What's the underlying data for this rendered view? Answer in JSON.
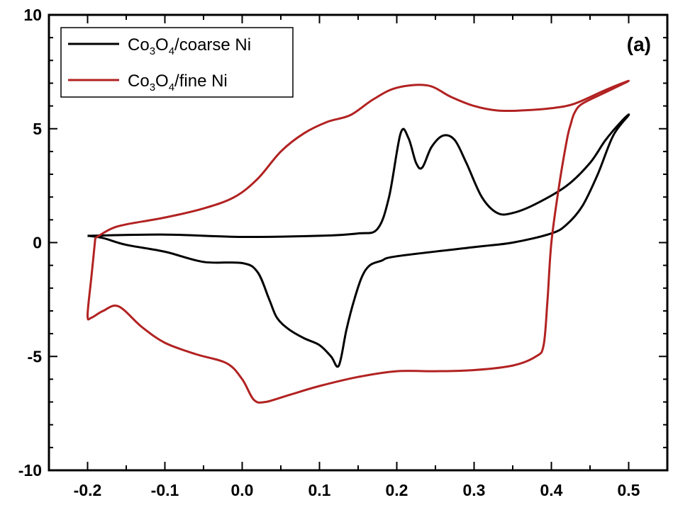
{
  "chart_data": {
    "type": "line",
    "title": "",
    "xlabel": "",
    "ylabel": "",
    "xlim": [
      -0.25,
      0.55
    ],
    "ylim": [
      -10,
      10
    ],
    "x_ticks": [
      "-0.2",
      "-0.1",
      "0.0",
      "0.1",
      "0.2",
      "0.3",
      "0.4",
      "0.5"
    ],
    "y_ticks": [
      "10",
      "5",
      "0",
      "-5",
      "-10"
    ],
    "annotation": "(a)",
    "legend_position": "top-left",
    "series": [
      {
        "name": "Co3O4/coarse Ni",
        "legend_main_1": "Co",
        "legend_sub_1": "3",
        "legend_main_2": "O",
        "legend_sub_2": "4",
        "legend_rest": "/coarse Ni",
        "color": "#000000",
        "points": [
          [
            -0.2,
            0.3
          ],
          [
            -0.1,
            0.35
          ],
          [
            0.0,
            0.25
          ],
          [
            0.1,
            0.3
          ],
          [
            0.15,
            0.4
          ],
          [
            0.175,
            0.6
          ],
          [
            0.19,
            2.0
          ],
          [
            0.205,
            4.8
          ],
          [
            0.215,
            4.6
          ],
          [
            0.225,
            3.5
          ],
          [
            0.233,
            3.3
          ],
          [
            0.245,
            4.2
          ],
          [
            0.26,
            4.7
          ],
          [
            0.275,
            4.5
          ],
          [
            0.29,
            3.5
          ],
          [
            0.31,
            2.0
          ],
          [
            0.33,
            1.3
          ],
          [
            0.35,
            1.3
          ],
          [
            0.38,
            1.7
          ],
          [
            0.42,
            2.5
          ],
          [
            0.45,
            3.5
          ],
          [
            0.47,
            4.5
          ],
          [
            0.49,
            5.3
          ],
          [
            0.5,
            5.6
          ],
          [
            0.48,
            4.7
          ],
          [
            0.46,
            3.0
          ],
          [
            0.44,
            1.6
          ],
          [
            0.42,
            0.8
          ],
          [
            0.4,
            0.4
          ],
          [
            0.35,
            0.0
          ],
          [
            0.3,
            -0.2
          ],
          [
            0.2,
            -0.6
          ],
          [
            0.18,
            -0.8
          ],
          [
            0.165,
            -1.0
          ],
          [
            0.155,
            -1.5
          ],
          [
            0.145,
            -2.5
          ],
          [
            0.135,
            -3.8
          ],
          [
            0.125,
            -5.4
          ],
          [
            0.115,
            -5.0
          ],
          [
            0.1,
            -4.5
          ],
          [
            0.08,
            -4.2
          ],
          [
            0.06,
            -3.8
          ],
          [
            0.045,
            -3.3
          ],
          [
            0.035,
            -2.5
          ],
          [
            0.02,
            -1.3
          ],
          [
            0.0,
            -0.9
          ],
          [
            -0.05,
            -0.85
          ],
          [
            -0.1,
            -0.4
          ],
          [
            -0.15,
            -0.1
          ],
          [
            -0.18,
            0.2
          ],
          [
            -0.2,
            0.3
          ]
        ]
      },
      {
        "name": "Co3O4/fine Ni",
        "legend_main_1": "Co",
        "legend_sub_1": "3",
        "legend_main_2": "O",
        "legend_sub_2": "4",
        "legend_rest": "/fine Ni",
        "color": "#b22222",
        "points": [
          [
            -0.19,
            0.2
          ],
          [
            -0.17,
            0.6
          ],
          [
            -0.15,
            0.8
          ],
          [
            -0.1,
            1.1
          ],
          [
            -0.05,
            1.5
          ],
          [
            -0.01,
            2.0
          ],
          [
            0.02,
            2.8
          ],
          [
            0.05,
            4.0
          ],
          [
            0.08,
            4.8
          ],
          [
            0.11,
            5.3
          ],
          [
            0.14,
            5.6
          ],
          [
            0.17,
            6.3
          ],
          [
            0.2,
            6.8
          ],
          [
            0.24,
            6.9
          ],
          [
            0.27,
            6.4
          ],
          [
            0.3,
            6.0
          ],
          [
            0.33,
            5.8
          ],
          [
            0.36,
            5.8
          ],
          [
            0.4,
            5.9
          ],
          [
            0.43,
            6.1
          ],
          [
            0.47,
            6.7
          ],
          [
            0.5,
            7.1
          ],
          [
            0.47,
            6.6
          ],
          [
            0.44,
            6.1
          ],
          [
            0.43,
            5.7
          ],
          [
            0.425,
            5.2
          ],
          [
            0.42,
            4.5
          ],
          [
            0.41,
            2.5
          ],
          [
            0.4,
            0.0
          ],
          [
            0.395,
            -2.5
          ],
          [
            0.39,
            -4.5
          ],
          [
            0.38,
            -5.0
          ],
          [
            0.35,
            -5.4
          ],
          [
            0.3,
            -5.6
          ],
          [
            0.25,
            -5.65
          ],
          [
            0.2,
            -5.65
          ],
          [
            0.15,
            -5.9
          ],
          [
            0.1,
            -6.3
          ],
          [
            0.06,
            -6.7
          ],
          [
            0.03,
            -7.0
          ],
          [
            0.015,
            -6.9
          ],
          [
            0.0,
            -6.0
          ],
          [
            -0.02,
            -5.3
          ],
          [
            -0.06,
            -4.9
          ],
          [
            -0.1,
            -4.4
          ],
          [
            -0.13,
            -3.7
          ],
          [
            -0.16,
            -2.8
          ],
          [
            -0.18,
            -3.0
          ],
          [
            -0.195,
            -3.3
          ],
          [
            -0.2,
            -3.2
          ],
          [
            -0.195,
            -1.5
          ],
          [
            -0.19,
            0.2
          ]
        ]
      }
    ]
  }
}
